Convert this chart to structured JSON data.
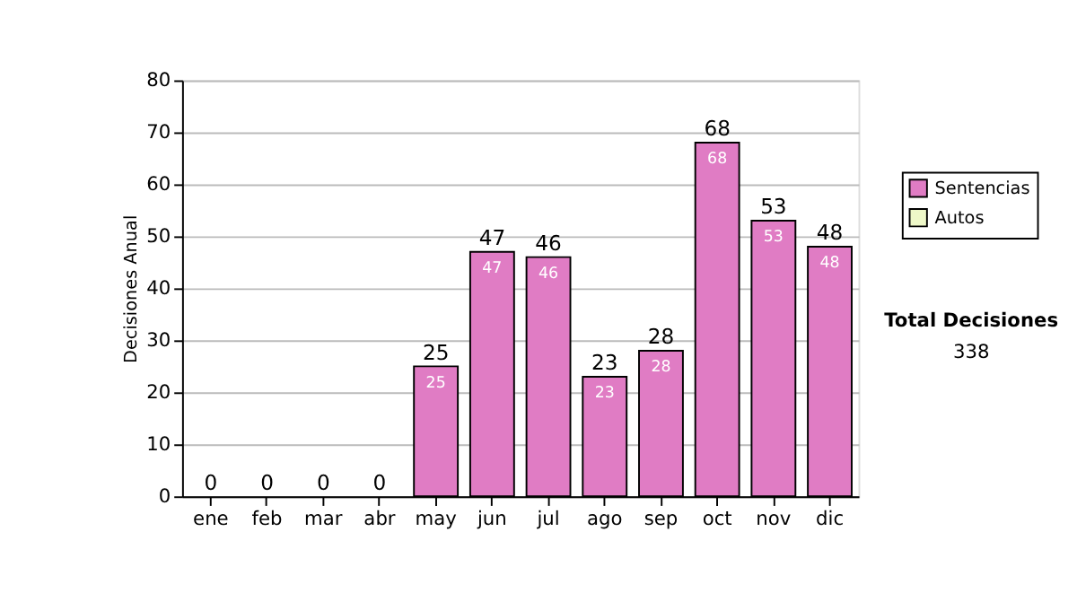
{
  "chart_data": {
    "type": "bar",
    "stacked": true,
    "ylabel": "Decisiones Anual",
    "categories": [
      "ene",
      "feb",
      "mar",
      "abr",
      "may",
      "jun",
      "jul",
      "ago",
      "sep",
      "oct",
      "nov",
      "dic"
    ],
    "series": [
      {
        "name": "Sentencias",
        "color": "#e07cc4",
        "values": [
          0,
          0,
          0,
          0,
          25,
          47,
          46,
          23,
          28,
          68,
          53,
          48
        ],
        "value_labels": [
          null,
          null,
          null,
          null,
          "25",
          "47",
          "46",
          "23",
          "28",
          "68",
          "53",
          "48"
        ]
      },
      {
        "name": "Autos",
        "color": "#eef8c8",
        "values": [
          0,
          0,
          0,
          0,
          0,
          0,
          0,
          0,
          0,
          0,
          0,
          0
        ]
      }
    ],
    "totals": [
      "0",
      "0",
      "0",
      "0",
      "25",
      "47",
      "46",
      "23",
      "28",
      "68",
      "53",
      "48"
    ],
    "ylim": [
      0,
      80
    ],
    "yticks": [
      0,
      10,
      20,
      30,
      40,
      50,
      60,
      70,
      80
    ],
    "grid": "y",
    "legend": "right",
    "annotations": [
      "Total Decisiones",
      "338"
    ]
  }
}
